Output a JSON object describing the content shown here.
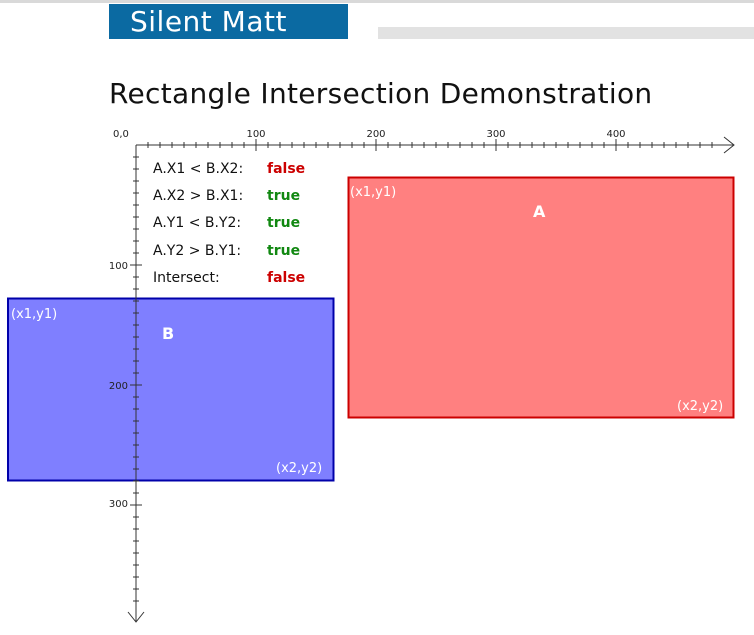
{
  "header": {
    "logo_text": "Silent Matt",
    "brand_color": "#0b6aa2"
  },
  "page": {
    "title": "Rectangle Intersection Demonstration"
  },
  "axes": {
    "origin_label": "0,0",
    "x_ticks": [
      "100",
      "200",
      "300",
      "400"
    ],
    "y_ticks": [
      "100",
      "200",
      "300"
    ]
  },
  "conditions": [
    {
      "label": "A.X1 < B.X2:",
      "value": "false",
      "color": "#cc0000"
    },
    {
      "label": "A.X2 > B.X1:",
      "value": "true",
      "color": "#118811"
    },
    {
      "label": "A.Y1 < B.Y2:",
      "value": "true",
      "color": "#118811"
    },
    {
      "label": "A.Y2 > B.Y1:",
      "value": "true",
      "color": "#118811"
    },
    {
      "label": "Intersect:",
      "value": "false",
      "color": "#cc0000"
    }
  ],
  "rect_a": {
    "name": "A",
    "corner1_label": "(x1,y1)",
    "corner2_label": "(x2,y2)",
    "fill": "#ff8080",
    "stroke": "#cc0000"
  },
  "rect_b": {
    "name": "B",
    "corner1_label": "(x1,y1)",
    "corner2_label": "(x2,y2)",
    "fill": "#7f7fff",
    "stroke": "#0000aa"
  }
}
